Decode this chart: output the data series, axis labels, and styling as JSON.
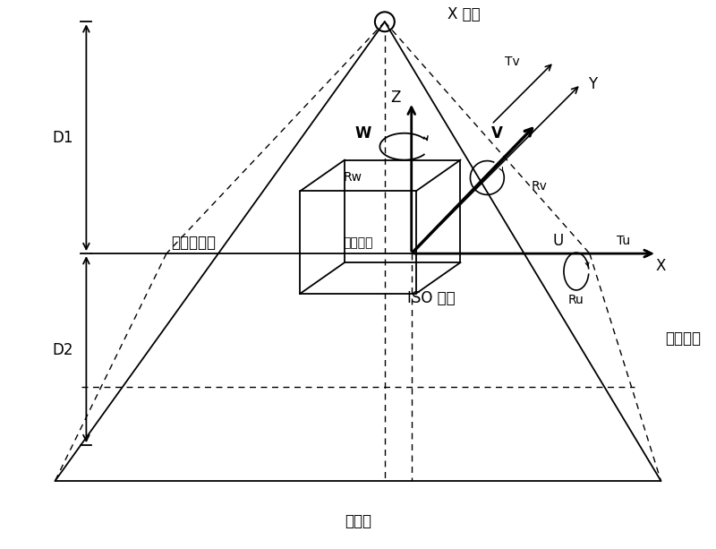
{
  "bg_color": "#ffffff",
  "line_color": "#000000",
  "title": "投影面",
  "labels": {
    "X_source": "X 光源",
    "Z_axis": "Z",
    "Y_axis": "Y",
    "X_axis": "X",
    "W_label": "W",
    "V_label": "V",
    "U_label": "U",
    "Rw_label": "Rw",
    "Rv_label": "Rv",
    "Ru_label": "Ru",
    "Tv_label": "Tv",
    "Tu_label": "Tu",
    "virtual_plane": "虚拟投影面",
    "iso_label": "ISO 中心",
    "cube_label": "三维图像",
    "proj_struct": "投影结构",
    "D1": "D1",
    "D2": "D2"
  }
}
